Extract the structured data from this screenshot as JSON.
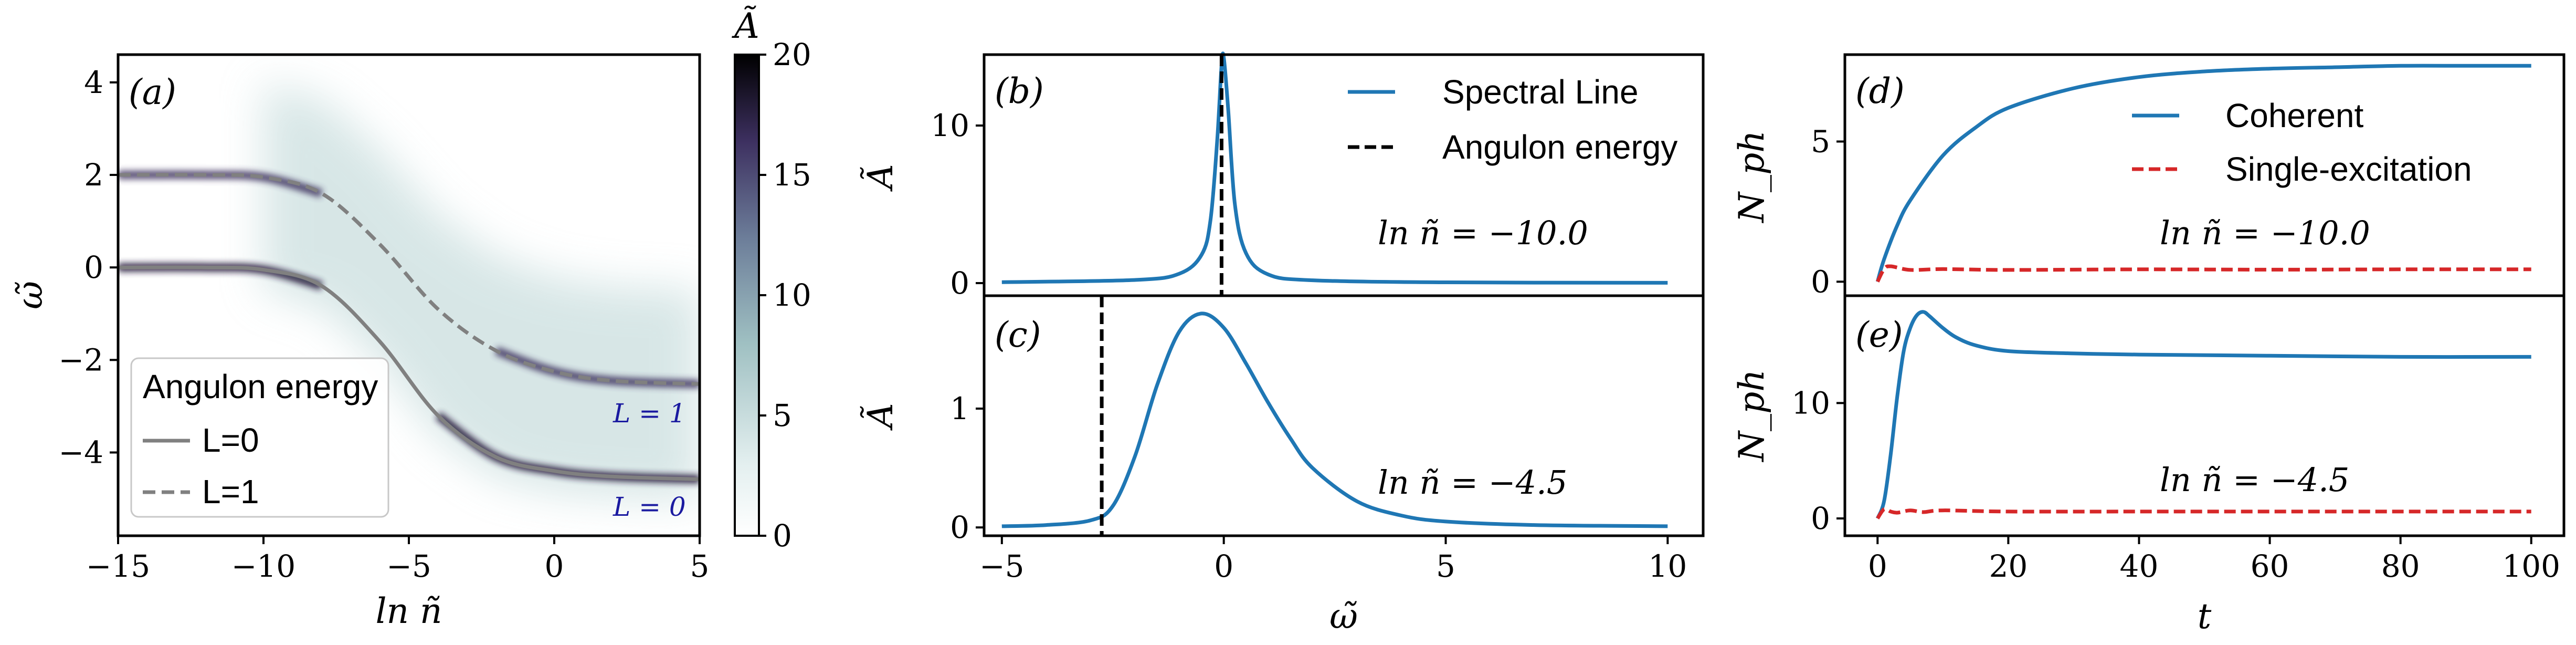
{
  "colors": {
    "blue": "#1f77b4",
    "red": "#d62728",
    "gray": "#808080",
    "black": "#000000",
    "l_label": "#1a1aa0",
    "cmap": [
      "#ffffff",
      "#e3efef",
      "#9fc0c2",
      "#6c7d99",
      "#3d3060",
      "#000000"
    ]
  },
  "chart_data": [
    {
      "panel": "a",
      "type": "heatmap",
      "panel_label": "(a)",
      "xlabel": "ln ñ",
      "ylabel": "ω̃",
      "xlim": [
        -15,
        5
      ],
      "ylim": [
        -5.8,
        4.6
      ],
      "xticks": [
        "−15",
        "−10",
        "−5",
        "0",
        "5"
      ],
      "xtick_values": [
        -15,
        -10,
        -5,
        0,
        5
      ],
      "yticks": [
        "4",
        "2",
        "0",
        "−2",
        "−4"
      ],
      "ytick_values": [
        4,
        2,
        0,
        -2,
        -4
      ],
      "colorbar": {
        "label": "Ã",
        "range": [
          0,
          20
        ],
        "ticks": [
          "20",
          "15",
          "10",
          "5",
          "0"
        ],
        "tick_values": [
          20,
          15,
          10,
          5,
          0
        ]
      },
      "series": [
        {
          "name": "L=0",
          "x": [
            -15,
            -12,
            -10,
            -8,
            -6,
            -4,
            -2,
            0,
            2,
            5
          ],
          "y": [
            0.0,
            0.0,
            -0.05,
            -0.4,
            -1.6,
            -3.2,
            -4.1,
            -4.4,
            -4.52,
            -4.58
          ]
        },
        {
          "name": "L=1",
          "x": [
            -15,
            -12,
            -10,
            -8,
            -6,
            -4,
            -2,
            0,
            2,
            5
          ],
          "y": [
            2.0,
            2.0,
            1.95,
            1.6,
            0.5,
            -0.9,
            -1.8,
            -2.25,
            -2.45,
            -2.52
          ]
        }
      ],
      "legend": {
        "title": "Angulon energy",
        "position": "lower-left",
        "entries": [
          "L=0",
          "L=1"
        ]
      },
      "annotations": [
        "L = 1",
        "L = 0"
      ]
    },
    {
      "panel": "b",
      "type": "line",
      "panel_label": "(b)",
      "ylabel": "Ã",
      "xlim": [
        -5.4,
        10.8
      ],
      "ylim": [
        -0.8,
        14.5
      ],
      "yticks": [
        "10",
        "0"
      ],
      "ytick_values": [
        10,
        0
      ],
      "series": [
        {
          "name": "Spectral Line",
          "x": [
            -5,
            -2,
            -1,
            -0.5,
            -0.3,
            -0.15,
            -0.05,
            0,
            0.1,
            0.25,
            0.5,
            1,
            2,
            5,
            10
          ],
          "y": [
            0.06,
            0.2,
            0.6,
            1.8,
            4.0,
            9.0,
            13.8,
            14.3,
            11.0,
            5.0,
            1.9,
            0.55,
            0.18,
            0.05,
            0.02
          ]
        }
      ],
      "vline": {
        "name": "Angulon energy",
        "x": -0.05
      },
      "legend": {
        "position": "top-right",
        "entries": [
          "Spectral Line",
          "Angulon energy"
        ]
      },
      "annotation": "ln ñ = −10.0"
    },
    {
      "panel": "c",
      "type": "line",
      "panel_label": "(c)",
      "xlabel": "ω̃",
      "ylabel": "Ã",
      "xlim": [
        -5.4,
        10.8
      ],
      "ylim": [
        -0.07,
        1.95
      ],
      "xticks": [
        "−5",
        "0",
        "5",
        "10"
      ],
      "xtick_values": [
        -5,
        0,
        5,
        10
      ],
      "yticks": [
        "1",
        "0"
      ],
      "ytick_values": [
        1,
        0
      ],
      "series": [
        {
          "name": "Spectral Line",
          "x": [
            -5,
            -4,
            -3,
            -2.5,
            -2,
            -1.5,
            -1,
            -0.5,
            0,
            0.5,
            1,
            1.5,
            2,
            3,
            4,
            5,
            7,
            10
          ],
          "y": [
            0.01,
            0.02,
            0.06,
            0.18,
            0.6,
            1.2,
            1.65,
            1.8,
            1.68,
            1.38,
            1.05,
            0.75,
            0.5,
            0.22,
            0.1,
            0.05,
            0.02,
            0.01
          ]
        }
      ],
      "vline": {
        "name": "Angulon energy",
        "x": -2.75
      },
      "annotation": "ln ñ = −4.5"
    },
    {
      "panel": "d",
      "type": "line",
      "panel_label": "(d)",
      "ylabel": "N_ph",
      "xlim": [
        -5,
        105
      ],
      "ylim": [
        -0.5,
        8.1
      ],
      "yticks": [
        "5",
        "0"
      ],
      "ytick_values": [
        5,
        0
      ],
      "series": [
        {
          "name": "Coherent",
          "x": [
            0,
            1,
            3,
            5,
            10,
            15,
            20,
            30,
            40,
            50,
            60,
            70,
            80,
            90,
            100
          ],
          "y": [
            0,
            0.8,
            2.0,
            2.9,
            4.5,
            5.5,
            6.2,
            6.9,
            7.3,
            7.5,
            7.6,
            7.65,
            7.7,
            7.7,
            7.7
          ]
        },
        {
          "name": "Single-excitation",
          "x": [
            0,
            1,
            2,
            5,
            10,
            20,
            40,
            60,
            80,
            100
          ],
          "y": [
            0,
            0.45,
            0.55,
            0.42,
            0.45,
            0.42,
            0.44,
            0.43,
            0.44,
            0.44
          ]
        }
      ],
      "legend": {
        "position": "upper-center",
        "entries": [
          "Coherent",
          "Single-excitation"
        ]
      },
      "annotation": "ln ñ = −10.0"
    },
    {
      "panel": "e",
      "type": "line",
      "panel_label": "(e)",
      "xlabel": "t",
      "ylabel": "N_ph",
      "xlim": [
        -5,
        105
      ],
      "ylim": [
        -1.5,
        19.3
      ],
      "xticks": [
        "0",
        "20",
        "40",
        "60",
        "80",
        "100"
      ],
      "xtick_values": [
        0,
        20,
        40,
        60,
        80,
        100
      ],
      "yticks": [
        "10",
        "0"
      ],
      "ytick_values": [
        10,
        0
      ],
      "series": [
        {
          "name": "Coherent",
          "x": [
            0,
            1,
            2,
            3,
            4,
            5,
            6,
            7,
            8,
            10,
            12,
            15,
            20,
            30,
            40,
            60,
            80,
            100
          ],
          "y": [
            0,
            1.5,
            5.5,
            10.5,
            14.5,
            16.5,
            17.6,
            17.9,
            17.5,
            16.5,
            15.7,
            15.0,
            14.5,
            14.3,
            14.2,
            14.1,
            14.0,
            14.0
          ]
        },
        {
          "name": "Single-excitation",
          "x": [
            0,
            1,
            2,
            3,
            5,
            7,
            10,
            20,
            40,
            60,
            80,
            100
          ],
          "y": [
            0,
            0.8,
            0.6,
            0.5,
            0.7,
            0.55,
            0.7,
            0.6,
            0.6,
            0.6,
            0.6,
            0.6
          ]
        }
      ],
      "annotation": "ln ñ = −4.5"
    }
  ]
}
